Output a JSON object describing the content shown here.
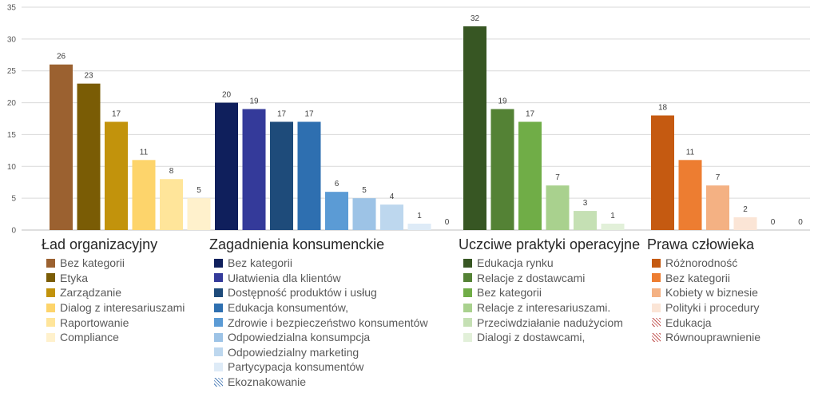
{
  "chart_data": {
    "type": "bar",
    "ylim": [
      0,
      35
    ],
    "yticks": [
      0,
      5,
      10,
      15,
      20,
      25,
      30,
      35
    ],
    "grid": true,
    "groups": [
      {
        "title": "Ład organizacyjny",
        "series": [
          {
            "name": "Bez kategorii",
            "value": 26,
            "color": "#9b6130"
          },
          {
            "name": "Etyka",
            "value": 23,
            "color": "#7a5c05"
          },
          {
            "name": "Zarządzanie",
            "value": 17,
            "color": "#c2930c"
          },
          {
            "name": "Dialog z interesariuszami",
            "value": 11,
            "color": "#fdd46b"
          },
          {
            "name": "Raportowanie",
            "value": 8,
            "color": "#ffe59a"
          },
          {
            "name": "Compliance",
            "value": 5,
            "color": "#fff1cc"
          }
        ]
      },
      {
        "title": "Zagadnienia konsumenckie",
        "series": [
          {
            "name": "Bez kategorii",
            "value": 20,
            "color": "#0f1f5c"
          },
          {
            "name": "Ułatwienia dla klientów",
            "value": 19,
            "color": "#343a9a"
          },
          {
            "name": "Dostępność produktów i usług",
            "value": 17,
            "color": "#1e4b7a"
          },
          {
            "name": "Edukacja konsumentów,",
            "value": 17,
            "color": "#2e6fb0"
          },
          {
            "name": "Zdrowie i bezpieczeństwo konsumentów",
            "value": 6,
            "color": "#5b9bd5"
          },
          {
            "name": "Odpowiedzialna konsumpcja",
            "value": 5,
            "color": "#9dc3e6"
          },
          {
            "name": "Odpowiedzialny marketing",
            "value": 4,
            "color": "#bdd7ee"
          },
          {
            "name": "Partycypacja konsumentów",
            "value": 1,
            "color": "#deebf7"
          },
          {
            "name": "Ekoznakowanie",
            "value": 0,
            "color": "#4f7fb8",
            "hatched": true
          }
        ]
      },
      {
        "title": "Uczciwe praktyki operacyjne",
        "series": [
          {
            "name": "Edukacja rynku",
            "value": 32,
            "color": "#375623"
          },
          {
            "name": "Relacje z dostawcami",
            "value": 19,
            "color": "#548235"
          },
          {
            "name": "Bez kategorii",
            "value": 17,
            "color": "#70ad47"
          },
          {
            "name": "Relacje z interesariuszami.",
            "value": 7,
            "color": "#a9d18e"
          },
          {
            "name": "Przeciwdziałanie nadużyciom",
            "value": 3,
            "color": "#c5e0b4"
          },
          {
            "name": "Dialogi z dostawcami,",
            "value": 1,
            "color": "#e2f0d9"
          }
        ]
      },
      {
        "title": "Prawa człowieka",
        "series": [
          {
            "name": "Różnorodność",
            "value": 18,
            "color": "#c55a11"
          },
          {
            "name": "Bez kategorii",
            "value": 11,
            "color": "#ed7d31"
          },
          {
            "name": "Kobiety w biznesie",
            "value": 7,
            "color": "#f4b183"
          },
          {
            "name": "Polityki i procedury",
            "value": 2,
            "color": "#fbe5d6"
          },
          {
            "name": "Edukacja",
            "value": 0,
            "color": "#c0504d",
            "hatched": true
          },
          {
            "name": "Równouprawnienie",
            "value": 0,
            "color": "#c0504d",
            "hatched": true
          }
        ]
      }
    ]
  }
}
